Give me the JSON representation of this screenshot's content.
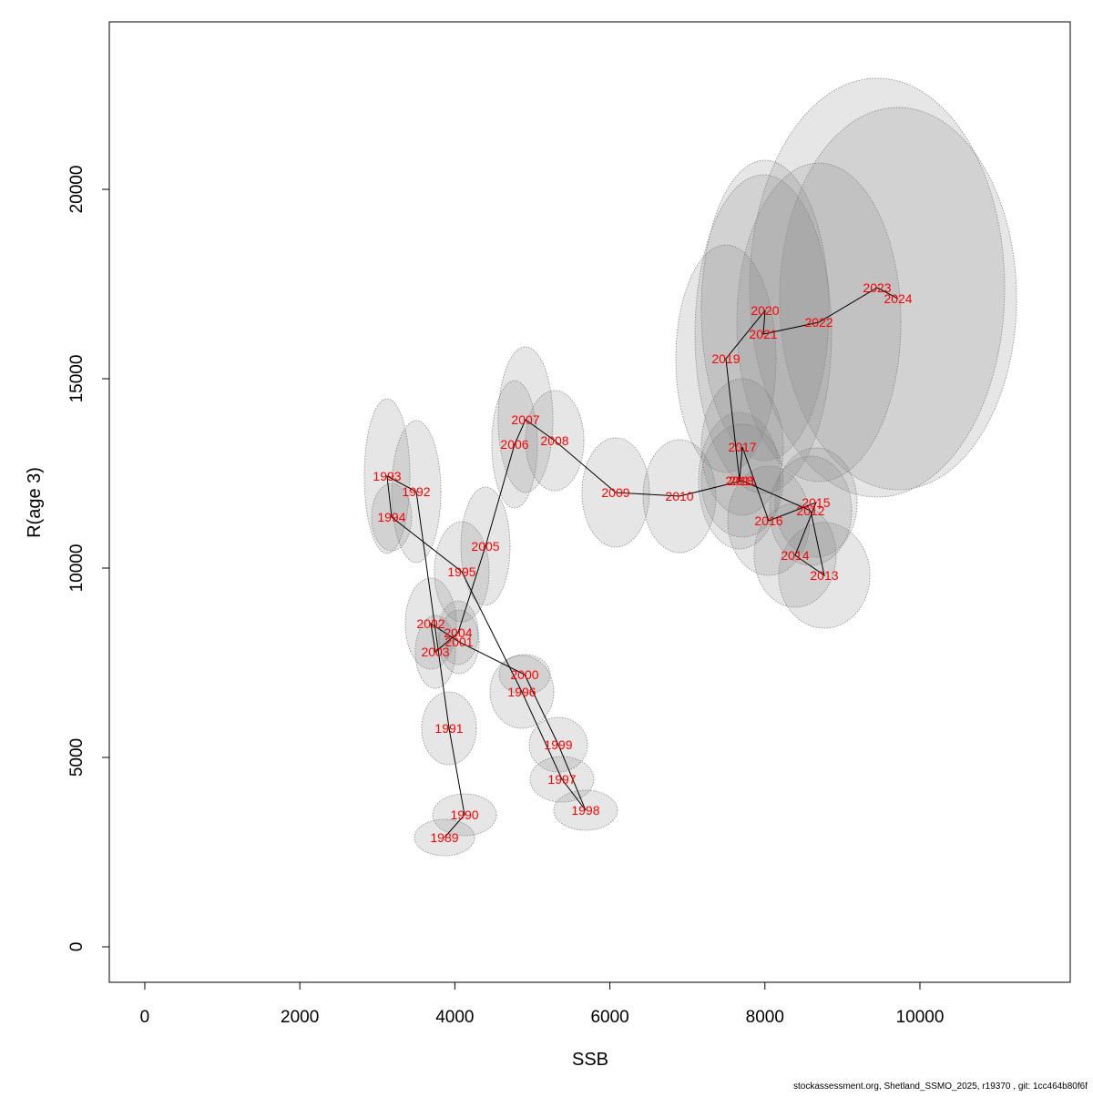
{
  "chart_data": {
    "type": "scatter",
    "x_label": "SSB",
    "y_label": "R(age 3)",
    "footer": "stockassessment.org, Shetland_SSMO_2025, r19370 , git: 1cc464b80f6f",
    "xlim": [
      -458,
      11939
    ],
    "ylim": [
      -937,
      24423
    ],
    "xticks": [
      0,
      2000,
      4000,
      6000,
      8000,
      10000
    ],
    "yticks": [
      0,
      5000,
      10000,
      15000,
      20000
    ],
    "label_color": "#ff0000",
    "line_color": "#000000",
    "ellipse_color": "rgba(128,128,128,0.2)",
    "point_labels": [
      "1989",
      "1990",
      "1991",
      "1992",
      "1993",
      "1994",
      "1995",
      "1996",
      "1997",
      "1998",
      "1999",
      "2000",
      "2001",
      "2002",
      "2003",
      "2004",
      "2005",
      "2006",
      "2007",
      "2008",
      "2009",
      "2010",
      "2011",
      "2012",
      "2013",
      "2014",
      "2015",
      "2016",
      "2017",
      "2018",
      "2019",
      "2020",
      "2021",
      "2022",
      "2023",
      "2024"
    ],
    "x": [
      3866,
      4125,
      3925,
      3502,
      3126,
      3184,
      4089,
      4865,
      5382,
      5687,
      5335,
      4900,
      4054,
      3690,
      3749,
      4042,
      4395,
      4771,
      4912,
      5288,
      6075,
      6898,
      7709,
      8590,
      8766,
      8390,
      8660,
      8049,
      7709,
      7673,
      7497,
      8002,
      7979,
      8696,
      9448,
      9718
    ],
    "y": [
      2885,
      3486,
      5769,
      12019,
      12428,
      11346,
      9904,
      6731,
      4423,
      3606,
      5337,
      7188,
      8053,
      8534,
      7788,
      8293,
      10577,
      13269,
      13918,
      13365,
      11995,
      11899,
      12308,
      11514,
      9808,
      10337,
      11731,
      11250,
      13197,
      12308,
      15529,
      16803,
      16178,
      16490,
      17404,
      17115
    ],
    "ellipse_rx": [
      388,
      411,
      353,
      317,
      294,
      259,
      353,
      411,
      411,
      411,
      376,
      329,
      259,
      329,
      259,
      259,
      317,
      294,
      353,
      376,
      435,
      470,
      529,
      529,
      588,
      529,
      529,
      529,
      529,
      529,
      646,
      823,
      881,
      1058,
      1645,
      1528
    ],
    "ellipse_ry": [
      481,
      553,
      962,
      1875,
      2043,
      889,
      1322,
      962,
      601,
      529,
      721,
      529,
      841,
      1202,
      962,
      841,
      1563,
      1683,
      1923,
      1322,
      1442,
      1490,
      1490,
      1442,
      1394,
      1370,
      1442,
      1442,
      1803,
      1803,
      3005,
      3966,
      4207,
      4207,
      5529,
      5048
    ]
  }
}
